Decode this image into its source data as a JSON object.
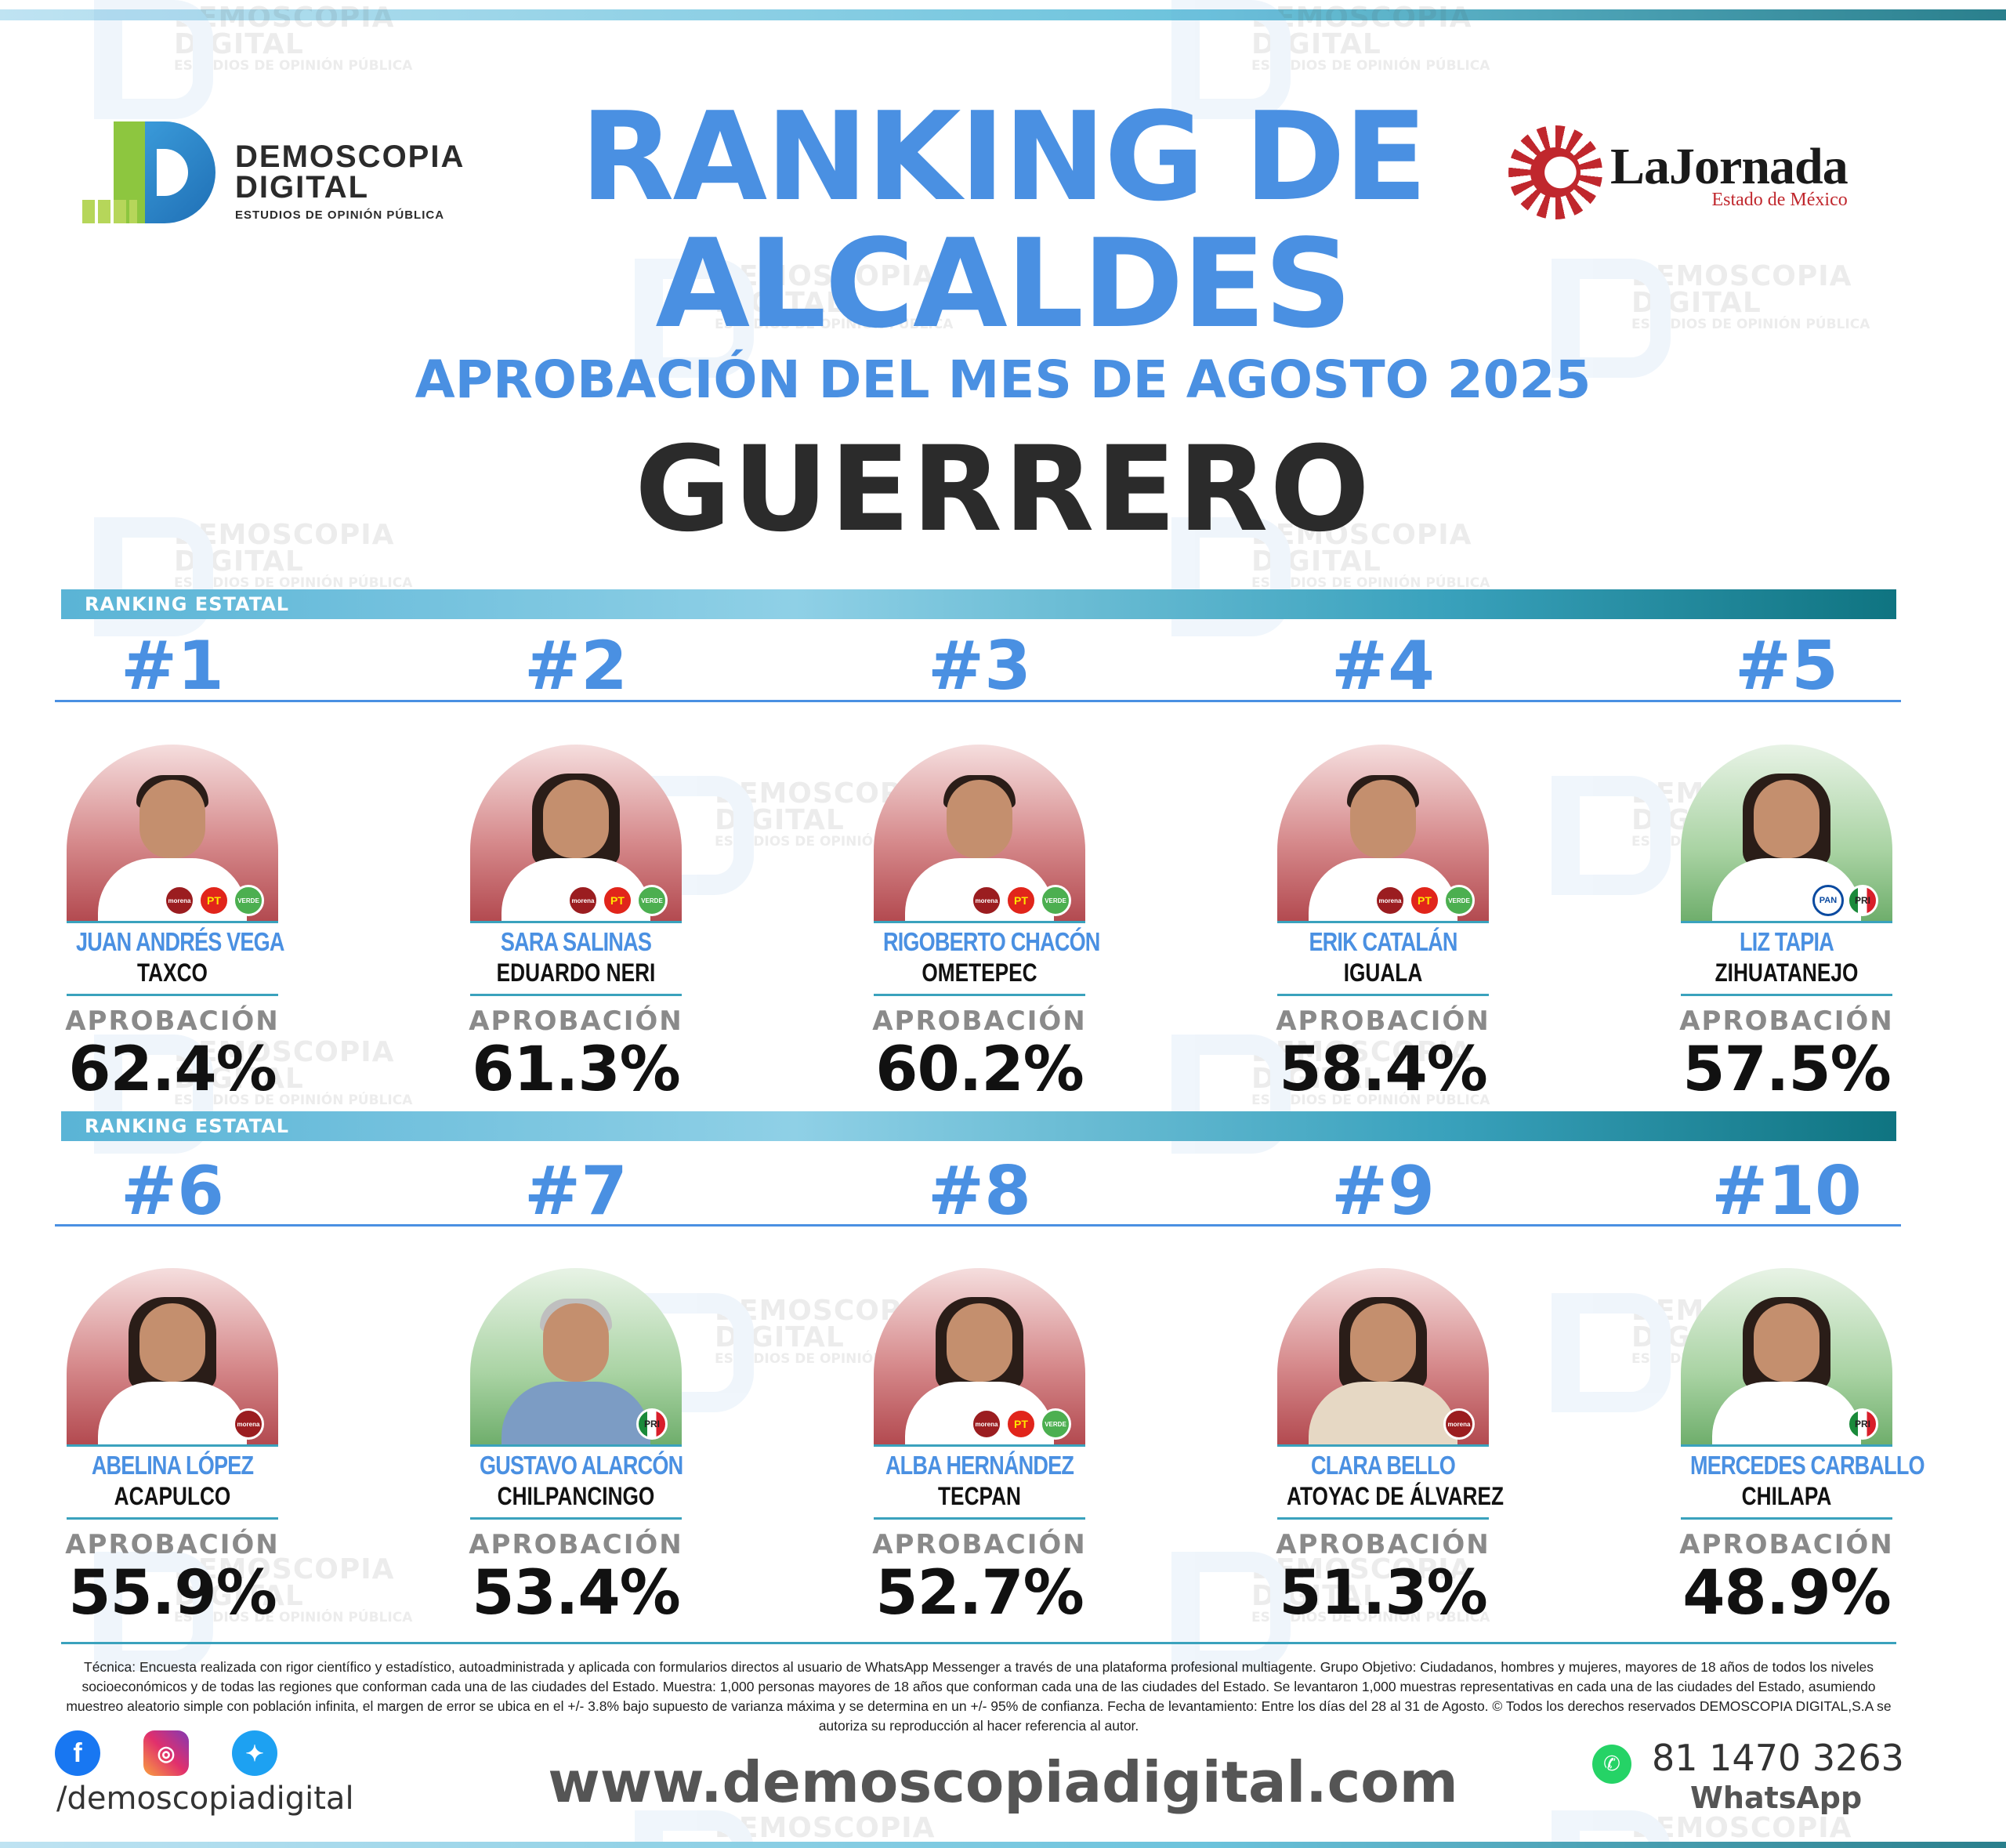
{
  "brand": {
    "demoscopia_line1": "DEMOSCOPIA",
    "demoscopia_line2": "DIGITAL",
    "demoscopia_tagline": "ESTUDIOS DE OPINIÓN PÚBLICA",
    "jornada_name": "LaJornada",
    "jornada_sub": "Estado de México"
  },
  "header": {
    "title_line1": "RANKING DE",
    "title_line2": "ALCALDES",
    "subtitle": "APROBACIÓN DEL MES DE AGOSTO 2025",
    "state": "GUERRERO"
  },
  "section_label": "RANKING ESTATAL",
  "approval_label": "APROBACIÓN",
  "ranking": [
    {
      "rank": "#1",
      "name": "JUAN ANDRÉS VEGA",
      "city": "TAXCO",
      "approval": "62.4%",
      "bg": "red",
      "parties": [
        "morena",
        "PT",
        "VERDE"
      ]
    },
    {
      "rank": "#2",
      "name": "SARA SALINAS",
      "city": "EDUARDO NERI",
      "approval": "61.3%",
      "bg": "red",
      "parties": [
        "morena",
        "PT",
        "VERDE"
      ]
    },
    {
      "rank": "#3",
      "name": "RIGOBERTO CHACÓN",
      "city": "OMETEPEC",
      "approval": "60.2%",
      "bg": "red",
      "parties": [
        "morena",
        "PT",
        "VERDE"
      ]
    },
    {
      "rank": "#4",
      "name": "ERIK CATALÁN",
      "city": "IGUALA",
      "approval": "58.4%",
      "bg": "red",
      "parties": [
        "morena",
        "PT",
        "VERDE"
      ]
    },
    {
      "rank": "#5",
      "name": "LIZ TAPIA",
      "city": "ZIHUATANEJO",
      "approval": "57.5%",
      "bg": "green",
      "parties": [
        "PAN",
        "PRI"
      ]
    },
    {
      "rank": "#6",
      "name": "ABELINA LÓPEZ",
      "city": "ACAPULCO",
      "approval": "55.9%",
      "bg": "red",
      "parties": [
        "morena"
      ]
    },
    {
      "rank": "#7",
      "name": "GUSTAVO ALARCÓN",
      "city": "CHILPANCINGO",
      "approval": "53.4%",
      "bg": "green",
      "parties": [
        "PRI"
      ]
    },
    {
      "rank": "#8",
      "name": "ALBA HERNÁNDEZ",
      "city": "TECPAN",
      "approval": "52.7%",
      "bg": "red",
      "parties": [
        "morena",
        "PT",
        "VERDE"
      ]
    },
    {
      "rank": "#9",
      "name": "CLARA BELLO",
      "city": "ATOYAC DE ÁLVAREZ",
      "approval": "51.3%",
      "bg": "red",
      "parties": [
        "morena"
      ]
    },
    {
      "rank": "#10",
      "name": "MERCEDES CARBALLO",
      "city": "CHILAPA",
      "approval": "48.9%",
      "bg": "green",
      "parties": [
        "PRI"
      ]
    }
  ],
  "footer": {
    "methodology": "Técnica: Encuesta realizada con rigor científico y estadístico, autoadministrada y aplicada con formularios directos al usuario de WhatsApp Messenger a través de una plataforma profesional multiagente. Grupo Objetivo: Ciudadanos, hombres y mujeres, mayores de 18 años de todos los niveles socioeconómicos y de todas las regiones que conforman cada una de las ciudades del Estado. Muestra: 1,000 personas mayores de 18 años que conforman cada una de las ciudades del Estado. Se levantaron 1,000 muestras representativas en cada una de las ciudades del Estado, asumiendo muestreo aleatorio simple con población infinita, el margen de error se ubica en el +/- 3.8% bajo supuesto de varianza máxima y se determina en un +/- 95% de confianza. Fecha de levantamiento: Entre los días del 28 al 31 de Agosto. © Todos los derechos reservados DEMOSCOPIA DIGITAL,S.A se autoriza su reproducción al hacer referencia al autor.",
    "handle": "/demoscopiadigital",
    "website": "www.demoscopiadigital.com",
    "phone": "81 1470 3263",
    "whatsapp_label": "WhatsApp"
  },
  "colors": {
    "accent": "#4a90e2",
    "teal": "#0f7481",
    "dark": "#2b2b2b"
  }
}
